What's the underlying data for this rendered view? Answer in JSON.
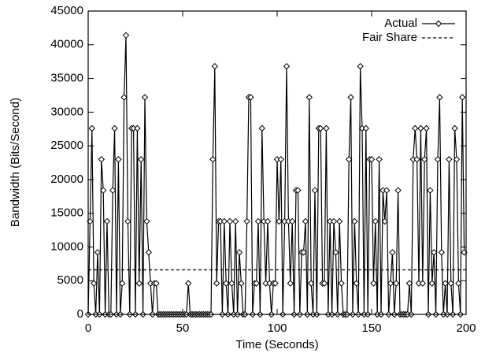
{
  "chart_data": {
    "type": "line",
    "xlabel": "Time (Seconds)",
    "ylabel": "Bandwidth (Bits/Second)",
    "xlim": [
      0,
      200
    ],
    "ylim": [
      0,
      45000
    ],
    "xticks": [
      0,
      50,
      100,
      150,
      200
    ],
    "yticks": [
      0,
      5000,
      10000,
      15000,
      20000,
      25000,
      30000,
      35000,
      40000,
      45000
    ],
    "legend": "upper right",
    "series": [
      {
        "name": "Actual",
        "color": "#000000",
        "marker": "diamond",
        "x": [
          0,
          1,
          2,
          3,
          4,
          5,
          6,
          7,
          8,
          9,
          10,
          11,
          12,
          13,
          14,
          15,
          16,
          17,
          18,
          19,
          20,
          21,
          22,
          23,
          24,
          25,
          26,
          27,
          28,
          29,
          30,
          31,
          32,
          33,
          34,
          35,
          36,
          37,
          38,
          39,
          40,
          41,
          42,
          43,
          44,
          45,
          46,
          47,
          48,
          49,
          50,
          51,
          52,
          53,
          54,
          55,
          56,
          57,
          58,
          59,
          60,
          61,
          62,
          63,
          64,
          65,
          66,
          67,
          68,
          69,
          70,
          71,
          72,
          73,
          74,
          75,
          76,
          77,
          78,
          79,
          80,
          81,
          82,
          83,
          84,
          85,
          86,
          87,
          88,
          89,
          90,
          91,
          92,
          93,
          94,
          95,
          96,
          97,
          98,
          99,
          100,
          101,
          102,
          103,
          104,
          105,
          106,
          107,
          108,
          109,
          110,
          111,
          112,
          113,
          114,
          115,
          116,
          117,
          118,
          119,
          120,
          121,
          122,
          123,
          124,
          125,
          126,
          127,
          128,
          129,
          130,
          131,
          132,
          133,
          134,
          135,
          136,
          137,
          138,
          139,
          140,
          141,
          142,
          143,
          144,
          145,
          146,
          147,
          148,
          149,
          150,
          151,
          152,
          153,
          154,
          155,
          156,
          157,
          158,
          159,
          160,
          161,
          162,
          163,
          164,
          165,
          166,
          167,
          168,
          169,
          170,
          171,
          172,
          173,
          174,
          175,
          176,
          177,
          178,
          179,
          180,
          181,
          182,
          183,
          184,
          185,
          186,
          187,
          188,
          189,
          190,
          191,
          192,
          193,
          194,
          195,
          196,
          197,
          198,
          199
        ],
        "values": [
          0,
          13800,
          27600,
          4600,
          0,
          9200,
          0,
          23000,
          18400,
          0,
          13800,
          0,
          0,
          18400,
          27600,
          0,
          23000,
          0,
          4600,
          32200,
          41400,
          13800,
          0,
          27600,
          27600,
          0,
          27600,
          4600,
          23000,
          0,
          32200,
          13800,
          9200,
          4600,
          0,
          4600,
          4600,
          0,
          0,
          0,
          0,
          0,
          0,
          0,
          0,
          0,
          0,
          0,
          0,
          0,
          0,
          0,
          0,
          4600,
          0,
          0,
          0,
          0,
          0,
          0,
          0,
          0,
          0,
          0,
          0,
          0,
          23000,
          36800,
          4600,
          13800,
          13800,
          0,
          13800,
          4600,
          0,
          13800,
          4600,
          0,
          13800,
          0,
          9200,
          4600,
          0,
          0,
          13800,
          32200,
          32200,
          0,
          4600,
          4600,
          13800,
          0,
          27600,
          13800,
          4600,
          13800,
          4600,
          0,
          4600,
          4600,
          23000,
          13800,
          23000,
          0,
          13800,
          36800,
          13800,
          4600,
          13800,
          0,
          18400,
          18400,
          0,
          9200,
          9200,
          13800,
          0,
          32200,
          4600,
          0,
          18400,
          0,
          27600,
          27600,
          4600,
          4600,
          27600,
          0,
          13800,
          0,
          13800,
          9200,
          0,
          13800,
          4600,
          0,
          0,
          0,
          23000,
          32200,
          0,
          13800,
          4600,
          0,
          36800,
          27600,
          0,
          27600,
          0,
          23000,
          23000,
          4600,
          13800,
          0,
          23000,
          0,
          18400,
          13800,
          18400,
          0,
          4600,
          9200,
          0,
          4600,
          18400,
          0,
          0,
          0,
          0,
          0,
          4600,
          0,
          23000,
          27600,
          23000,
          4600,
          27600,
          4600,
          23000,
          27600,
          0,
          18400,
          4600,
          9200,
          0,
          23000,
          32200,
          9200,
          0,
          4600,
          0,
          23000,
          4600,
          0,
          27600,
          23000,
          4600,
          0,
          32200,
          9200
        ]
      },
      {
        "name": "Fair Share",
        "color": "#000000",
        "dash": true,
        "x": [
          0,
          200
        ],
        "values": [
          6600,
          6600
        ]
      }
    ]
  }
}
